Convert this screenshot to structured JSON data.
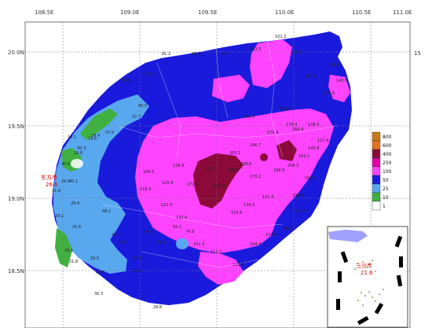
{
  "axes": {
    "lon_ticks": [
      "108.5E",
      "109.0E",
      "109.5E",
      "110.0E",
      "110.5E",
      "111.0E"
    ],
    "lat_ticks": [
      "20.0N",
      "19.5N",
      "19.0N",
      "18.5N"
    ],
    "side_number": "15"
  },
  "legend": {
    "levels": [
      "800",
      "600",
      "400",
      "250",
      "100",
      "50",
      "25",
      "10",
      "1"
    ],
    "colors": [
      "#c87a14",
      "#e0741e",
      "#8b0a3a",
      "#e000a8",
      "#ff44ff",
      "#1a1adc",
      "#58a8f0",
      "#40b040",
      "#ffffff"
    ]
  },
  "cities": {
    "dongfang": "东方市",
    "dongfang_value": "26.6",
    "sansha": "三沙市",
    "sansha_value": "21.6"
  },
  "station_values": [
    "19.1",
    "18.8",
    "19.6",
    "27.5",
    "58.0",
    "40.5",
    "28.4",
    "40.6",
    "45.3",
    "29.9",
    "31.9",
    "40.1",
    "28.4",
    "34.1",
    "29.1",
    "21.8",
    "25.6",
    "29.5",
    "42.5",
    "30.3",
    "29.8",
    "40.5",
    "48.1",
    "40.3",
    "35.5",
    "41.4",
    "106.5",
    "119.3",
    "125.9",
    "128.4",
    "121.4",
    "132.0",
    "171.6",
    "150.2",
    "239.4",
    "198.5",
    "203.1",
    "248.6",
    "170.2",
    "153.8",
    "134.3",
    "121.4",
    "166.5",
    "258.3",
    "169.1",
    "145.8",
    "178.4",
    "175.4",
    "246.7",
    "142.5",
    "188.3",
    "164.4",
    "138.9",
    "121.4",
    "168.7",
    "156.5",
    "173.0",
    "262.1",
    "124.9",
    "194.4",
    "123.5",
    "111.2",
    "101.3",
    "74.8",
    "71.1",
    "61.6",
    "55.1",
    "131.6",
    "143.5",
    "154.9",
    "114.3",
    "119.8",
    "101.3",
    "103.3",
    "94.7",
    "86.4",
    "81.2",
    "62.3",
    "57.7"
  ]
}
